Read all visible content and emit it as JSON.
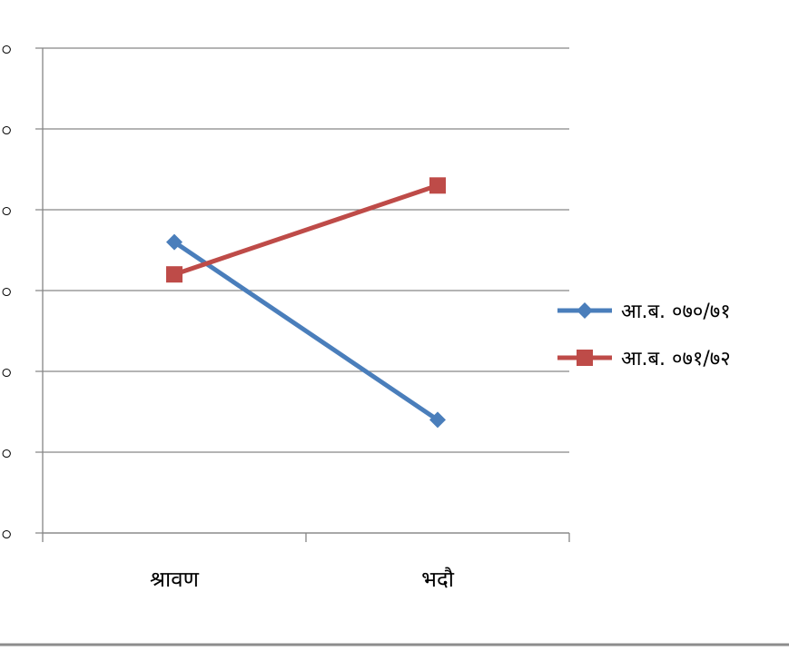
{
  "chart_data": {
    "type": "line",
    "categories": [
      "श्रावण",
      "भदौ"
    ],
    "series": [
      {
        "name": "आ.ब. ०७०/७१",
        "values": [
          3.6,
          1.4
        ],
        "color": "#4A7EBB",
        "marker": "diamond"
      },
      {
        "name": "आ.ब. ०७१/७२",
        "values": [
          3.2,
          4.3
        ],
        "color": "#BE4B48",
        "marker": "square"
      }
    ],
    "y_tick_labels": [
      "੦",
      "੦",
      "੦",
      "੦",
      "੦",
      "੦",
      "੦"
    ],
    "ylim": [
      0,
      6
    ],
    "grid": true,
    "legend_position": "right"
  }
}
